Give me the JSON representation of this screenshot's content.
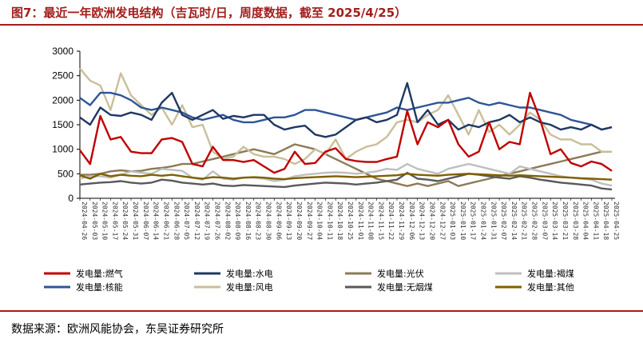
{
  "title": "图7：最近一年欧洲发电结构（吉瓦时/日，周度数据，截至 2025/4/25）",
  "source": "数据来源：欧洲风能协会，东吴证券研究所",
  "chart_data": {
    "type": "line",
    "ylim": [
      0,
      3000
    ],
    "yticks": [
      "0",
      "500",
      "1000",
      "1500",
      "2000",
      "2500",
      "3000"
    ],
    "grid": false,
    "legend_position": "bottom",
    "x": [
      "2024-04-26",
      "2024-05-03",
      "2024-05-10",
      "2024-05-17",
      "2024-05-24",
      "2024-05-31",
      "2024-06-07",
      "2024-06-14",
      "2024-06-21",
      "2024-06-28",
      "2024-07-05",
      "2024-07-12",
      "2024-07-19",
      "2024-07-26",
      "2024-08-02",
      "2024-08-09",
      "2024-08-16",
      "2024-08-23",
      "2024-08-30",
      "2024-09-06",
      "2024-09-13",
      "2024-09-20",
      "2024-09-27",
      "2024-10-04",
      "2024-10-11",
      "2024-10-18",
      "2024-10-25",
      "2024-11-01",
      "2024-11-08",
      "2024-11-15",
      "2024-11-22",
      "2024-11-29",
      "2024-12-06",
      "2024-12-13",
      "2024-12-20",
      "2024-12-27",
      "2025-01-03",
      "2025-01-10",
      "2025-01-17",
      "2025-01-24",
      "2025-01-31",
      "2025-02-07",
      "2025-02-14",
      "2025-02-21",
      "2025-02-28",
      "2025-03-07",
      "2025-03-14",
      "2025-03-21",
      "2025-03-28",
      "2025-04-04",
      "2025-04-11",
      "2025-04-18",
      "2025-04-25"
    ],
    "series": [
      {
        "name": "发电量:燃气",
        "color": "#c00000",
        "values": [
          980,
          700,
          1680,
          1200,
          1250,
          950,
          920,
          920,
          1200,
          1230,
          1150,
          700,
          650,
          1050,
          780,
          780,
          740,
          780,
          650,
          520,
          600,
          950,
          700,
          720,
          950,
          1020,
          800,
          760,
          740,
          740,
          800,
          850,
          1780,
          1100,
          1550,
          1450,
          1600,
          1100,
          850,
          950,
          1550,
          1000,
          1150,
          1100,
          2150,
          1600,
          900,
          1000,
          720,
          650,
          750,
          700,
          560
        ]
      },
      {
        "name": "发电量:水电",
        "color": "#1f3864",
        "values": [
          1650,
          1500,
          1850,
          1700,
          1680,
          1750,
          1700,
          1600,
          1950,
          2150,
          1700,
          1600,
          1700,
          1800,
          1620,
          1680,
          1650,
          1700,
          1700,
          1500,
          1400,
          1450,
          1480,
          1300,
          1250,
          1300,
          1450,
          1600,
          1650,
          1550,
          1600,
          1700,
          2350,
          1550,
          1800,
          1500,
          1600,
          1400,
          1500,
          1450,
          1550,
          1600,
          1700,
          1550,
          1650,
          1550,
          1500,
          1400,
          1450,
          1400,
          1500,
          1400,
          1450
        ]
      },
      {
        "name": "发电量:光伏",
        "color": "#8c7b56",
        "values": [
          480,
          480,
          500,
          550,
          570,
          550,
          560,
          600,
          620,
          650,
          700,
          700,
          750,
          800,
          850,
          900,
          950,
          1000,
          950,
          900,
          1000,
          1100,
          1050,
          1000,
          900,
          800,
          700,
          600,
          500,
          400,
          350,
          300,
          250,
          300,
          250,
          300,
          350,
          250,
          300,
          350,
          400,
          450,
          500,
          550,
          600,
          650,
          700,
          750,
          800,
          850,
          900,
          950,
          950
        ]
      },
      {
        "name": "发电量:褐煤",
        "color": "#bfbfbf",
        "values": [
          400,
          450,
          450,
          420,
          480,
          550,
          520,
          500,
          600,
          580,
          560,
          420,
          380,
          550,
          400,
          380,
          420,
          420,
          400,
          350,
          380,
          450,
          480,
          500,
          520,
          530,
          520,
          500,
          520,
          550,
          600,
          580,
          700,
          600,
          550,
          500,
          600,
          650,
          700,
          650,
          600,
          550,
          500,
          650,
          600,
          550,
          500,
          450,
          420,
          400,
          380,
          300,
          260
        ]
      },
      {
        "name": "发电量:核能",
        "color": "#2f5597",
        "values": [
          2050,
          1900,
          2150,
          2150,
          2100,
          2000,
          1850,
          1800,
          1850,
          1800,
          1750,
          1650,
          1600,
          1650,
          1700,
          1600,
          1550,
          1550,
          1600,
          1650,
          1650,
          1700,
          1800,
          1800,
          1750,
          1700,
          1650,
          1600,
          1650,
          1700,
          1750,
          1850,
          1800,
          1850,
          1900,
          1950,
          1950,
          2000,
          2050,
          1950,
          1900,
          1950,
          1900,
          1850,
          1850,
          1800,
          1750,
          1700,
          1600,
          1550,
          1500,
          1400,
          1450
        ]
      },
      {
        "name": "发电量:风电",
        "color": "#c9bf99",
        "values": [
          2650,
          2400,
          2300,
          1800,
          2550,
          2100,
          1900,
          1700,
          1850,
          1500,
          1900,
          1450,
          1500,
          950,
          800,
          850,
          1050,
          900,
          850,
          850,
          800,
          700,
          800,
          1000,
          900,
          1200,
          800,
          950,
          1050,
          1100,
          1250,
          1550,
          1600,
          1550,
          1700,
          1800,
          2100,
          1700,
          1300,
          1800,
          1350,
          1500,
          1300,
          1500,
          1750,
          1600,
          1300,
          1200,
          1200,
          1100,
          1100,
          950,
          950
        ]
      },
      {
        "name": "发电量:无烟煤",
        "color": "#595959",
        "values": [
          280,
          300,
          320,
          330,
          350,
          320,
          300,
          320,
          380,
          360,
          320,
          300,
          280,
          300,
          260,
          250,
          270,
          260,
          250,
          240,
          230,
          260,
          280,
          300,
          320,
          310,
          300,
          280,
          300,
          320,
          350,
          380,
          520,
          400,
          380,
          350,
          400,
          450,
          500,
          480,
          450,
          420,
          400,
          450,
          420,
          380,
          350,
          320,
          300,
          280,
          260,
          200,
          180
        ]
      },
      {
        "name": "发电量:其他",
        "color": "#7f6000",
        "values": [
          470,
          400,
          500,
          450,
          480,
          460,
          450,
          480,
          460,
          480,
          450,
          420,
          400,
          430,
          420,
          400,
          420,
          430,
          420,
          400,
          390,
          410,
          420,
          430,
          440,
          450,
          440,
          430,
          440,
          450,
          460,
          470,
          500,
          480,
          470,
          460,
          480,
          490,
          500,
          490,
          480,
          470,
          460,
          470,
          460,
          450,
          440,
          430,
          420,
          410,
          400,
          390,
          380
        ]
      }
    ]
  }
}
